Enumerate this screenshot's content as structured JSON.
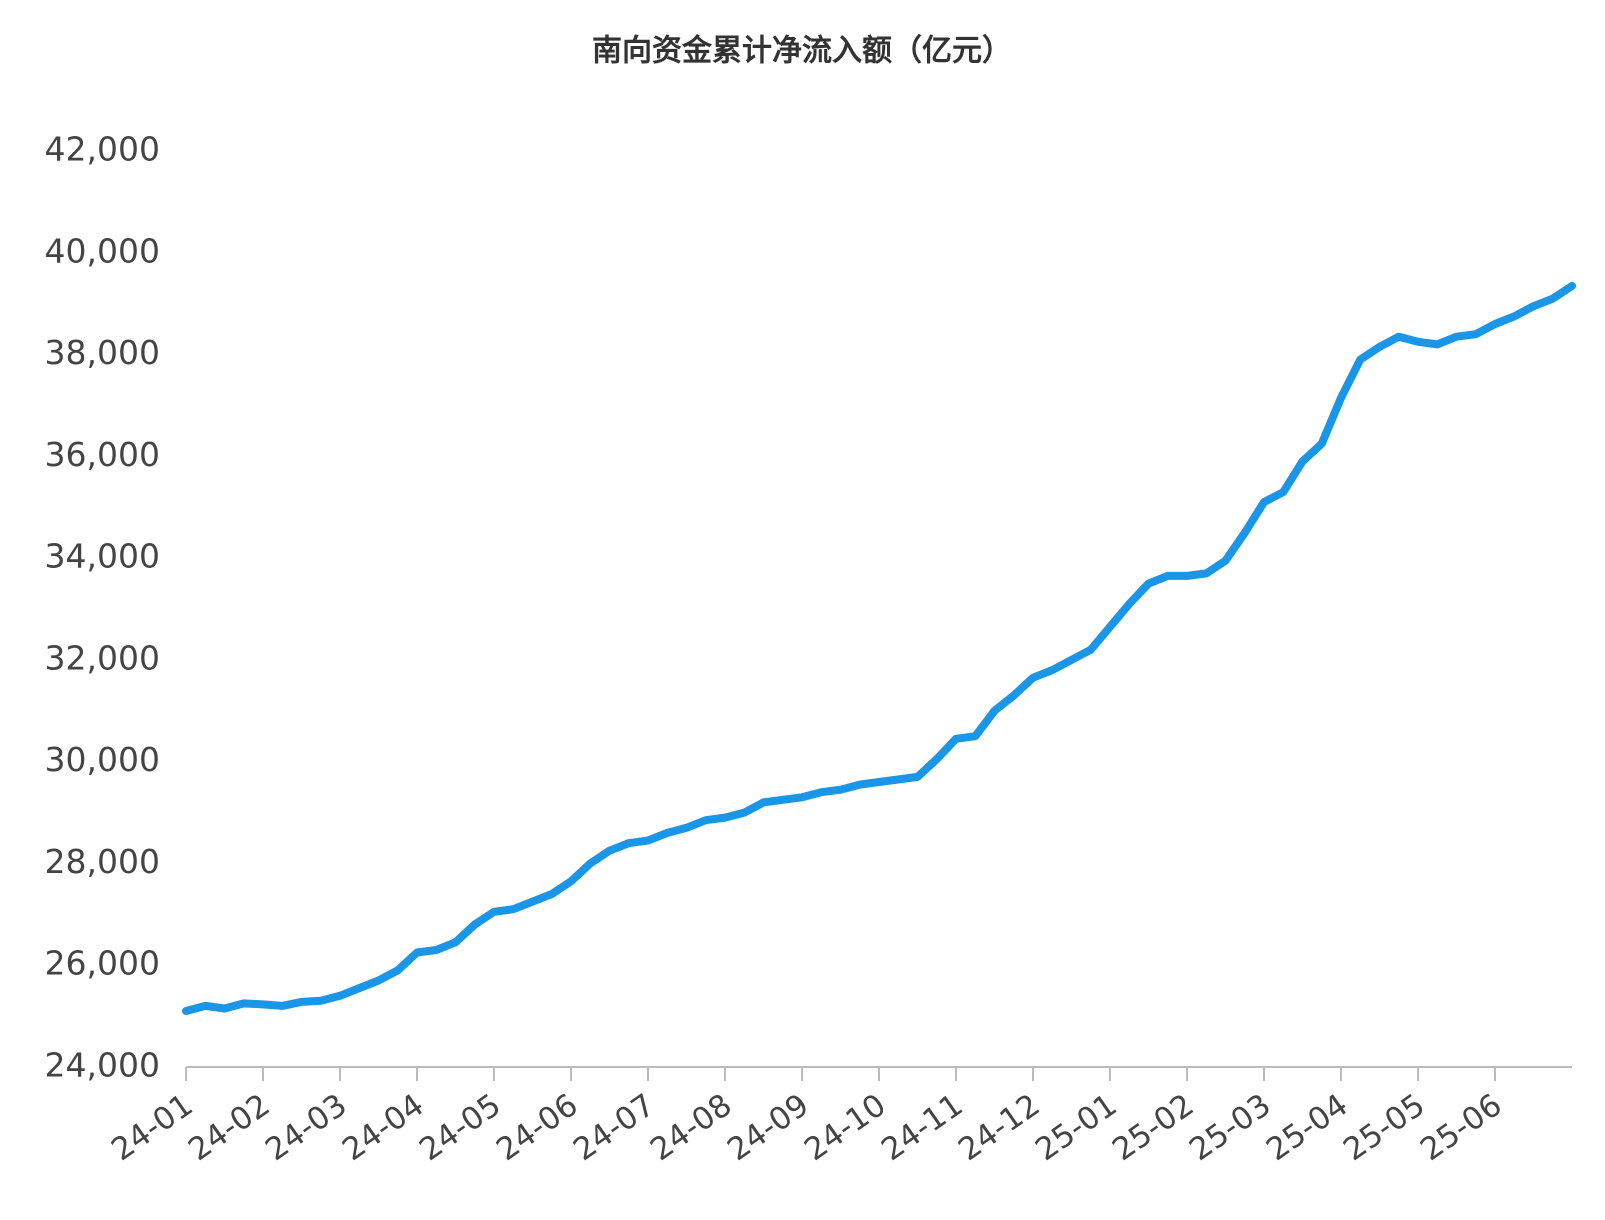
{
  "chart_data": {
    "type": "line",
    "title": "南向资金累计净流入额（亿元）",
    "categories": [
      "24-01",
      null,
      null,
      null,
      "24-02",
      null,
      null,
      null,
      "24-03",
      null,
      null,
      null,
      "24-04",
      null,
      null,
      null,
      "24-05",
      null,
      null,
      null,
      "24-06",
      null,
      null,
      null,
      "24-07",
      null,
      null,
      null,
      "24-08",
      null,
      null,
      null,
      "24-09",
      null,
      null,
      null,
      "24-10",
      null,
      null,
      null,
      "24-11",
      null,
      null,
      null,
      "24-12",
      null,
      null,
      null,
      "25-01",
      null,
      null,
      null,
      "25-02",
      null,
      null,
      null,
      "25-03",
      null,
      null,
      null,
      "25-04",
      null,
      null,
      null,
      "25-05",
      null,
      null,
      null,
      "25-06",
      null,
      null,
      null,
      null
    ],
    "values": [
      25100,
      25200,
      25150,
      25250,
      25230,
      25200,
      25280,
      25300,
      25400,
      25550,
      25700,
      25900,
      26250,
      26300,
      26450,
      26800,
      27050,
      27100,
      27250,
      27400,
      27650,
      28000,
      28250,
      28400,
      28450,
      28600,
      28700,
      28850,
      28900,
      29000,
      29200,
      29250,
      29300,
      29400,
      29450,
      29550,
      29600,
      29650,
      29700,
      30050,
      30450,
      30500,
      31000,
      31300,
      31650,
      31800,
      32000,
      32200,
      32650,
      33100,
      33500,
      33650,
      33650,
      33700,
      33950,
      34500,
      35100,
      35300,
      35900,
      36250,
      37150,
      37900,
      38150,
      38350,
      38250,
      38200,
      38350,
      38400,
      38600,
      38750,
      38950,
      39100,
      39350
    ],
    "color": "#1a96e8",
    "ylim": [
      24000,
      42000
    ],
    "yticks": [
      {
        "value": 24000,
        "label": "24,000"
      },
      {
        "value": 26000,
        "label": "26,000"
      },
      {
        "value": 28000,
        "label": "28,000"
      },
      {
        "value": 30000,
        "label": "30,000"
      },
      {
        "value": 32000,
        "label": "32,000"
      },
      {
        "value": 34000,
        "label": "34,000"
      },
      {
        "value": 36000,
        "label": "36,000"
      },
      {
        "value": 38000,
        "label": "38,000"
      },
      {
        "value": 40000,
        "label": "40,000"
      },
      {
        "value": 42000,
        "label": "42,000"
      }
    ],
    "grid": false
  }
}
